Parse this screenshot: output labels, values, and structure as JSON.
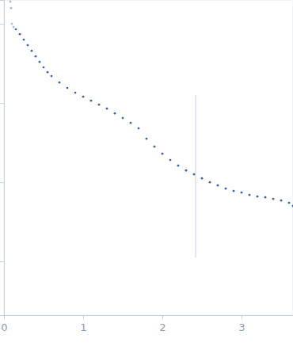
{
  "chart_data": {
    "type": "scatter",
    "log": "y",
    "tick_labels": "x",
    "marker": "circle",
    "xlim": [
      0,
      3.65
    ],
    "xticks": [
      0,
      1,
      2,
      3
    ],
    "ylim": [
      0.00021,
      2.0
    ],
    "yticks": [
      0.001,
      0.01,
      0.1,
      1
    ],
    "reference_line": {
      "x": 2.42,
      "y": [
        0.126,
        0.00112
      ]
    },
    "series": [
      {
        "color": "#a9bce0",
        "x": [
          0.08,
          0.09,
          0.1,
          0.12
        ],
        "values": [
          1.91,
          1.58,
          1.0,
          0.912
        ]
      },
      {
        "color": "#3a66b5",
        "x": [
          0.15,
          0.2,
          0.25,
          0.3,
          0.35,
          0.4,
          0.45,
          0.5,
          0.55,
          0.6,
          0.7,
          0.8,
          0.9,
          1.0,
          1.1,
          1.2,
          1.3,
          1.4,
          1.5,
          1.6,
          1.7,
          1.8,
          1.9,
          2.0,
          2.1,
          2.2,
          2.3,
          2.4,
          2.5,
          2.6,
          2.7,
          2.8,
          2.9,
          3.0,
          3.1,
          3.2,
          3.3,
          3.4,
          3.5,
          3.6,
          3.65
        ],
        "values": [
          0.851,
          0.741,
          0.631,
          0.537,
          0.457,
          0.389,
          0.331,
          0.282,
          0.245,
          0.219,
          0.182,
          0.155,
          0.135,
          0.12,
          0.107,
          0.0955,
          0.0851,
          0.0741,
          0.0646,
          0.0562,
          0.0479,
          0.0355,
          0.0282,
          0.0229,
          0.0191,
          0.0162,
          0.0141,
          0.0126,
          0.0112,
          0.01,
          0.00912,
          0.00832,
          0.00776,
          0.00741,
          0.00692,
          0.00661,
          0.00646,
          0.00617,
          0.00589,
          0.0055,
          0.00501
        ]
      }
    ]
  }
}
